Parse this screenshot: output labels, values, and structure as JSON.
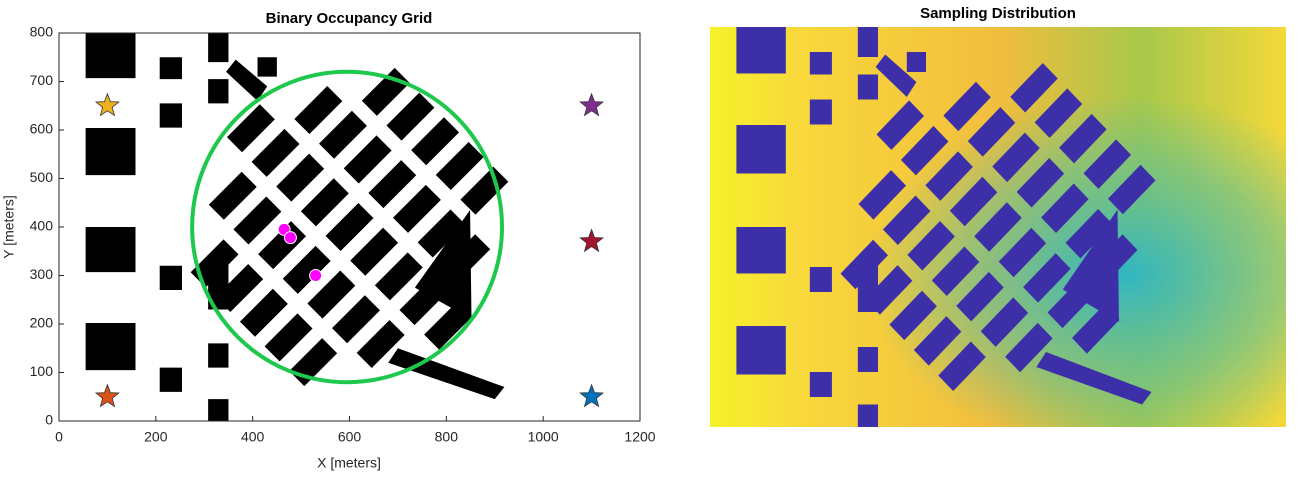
{
  "chart_data": [
    {
      "type": "scatter",
      "title": "Binary Occupancy Grid",
      "xlabel": "X [meters]",
      "ylabel": "Y [meters]",
      "xlim": [
        0,
        1200
      ],
      "ylim": [
        0,
        800
      ],
      "xticks": [
        0,
        200,
        400,
        600,
        800,
        1000,
        1200
      ],
      "yticks": [
        0,
        100,
        200,
        300,
        400,
        500,
        600,
        700,
        800
      ],
      "circle": {
        "x": 595,
        "y": 400,
        "r": 320,
        "color": "#1ec84c"
      },
      "series": [
        {
          "marker": "star",
          "colors": [
            "#edb120",
            "#7e2f8e",
            "#a2142f",
            "#d95319",
            "#0072bd"
          ],
          "x": [
            100,
            1100,
            1100,
            100,
            1100
          ],
          "y": [
            650,
            650,
            370,
            50,
            50
          ]
        },
        {
          "marker": "circle",
          "color": "#ff00ff",
          "x": [
            465,
            478,
            530
          ],
          "y": [
            395,
            378,
            300
          ]
        }
      ]
    },
    {
      "type": "image",
      "title": "Sampling Distribution"
    }
  ]
}
